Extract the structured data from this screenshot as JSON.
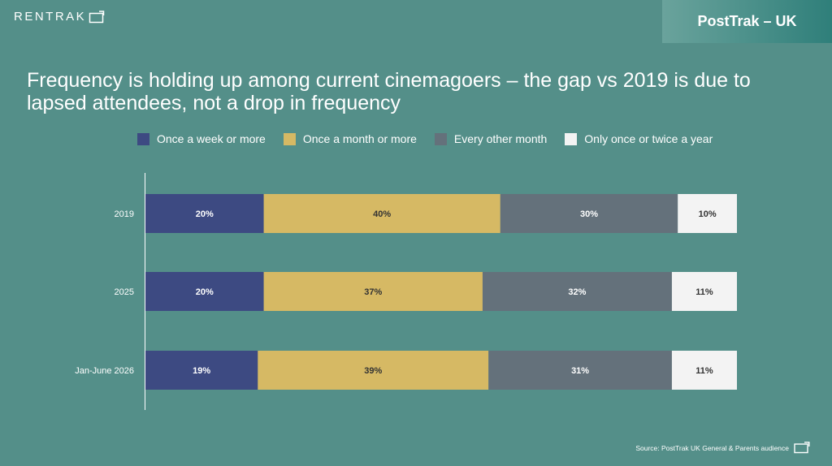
{
  "brand": {
    "logo_text": "RENTRAK"
  },
  "header": {
    "title": "PostTrak – UK"
  },
  "slide": {
    "title": "Frequency is holding up among current cinemagoers – the gap vs 2019 is due to lapsed attendees, not a drop in frequency",
    "source": "Source: PostTrak UK General & Parents audience"
  },
  "colors": {
    "background": "#548f89",
    "once_a_week": "#3d4a82",
    "once_a_month": "#d6b964",
    "every_other_month": "#64717b",
    "once_twice_year": "#f3f3f3"
  },
  "chart_data": {
    "type": "bar",
    "orientation": "horizontal",
    "stacked": true,
    "categories": [
      "2019",
      "2025",
      "Jan-June 2026"
    ],
    "series": [
      {
        "name": "Once a week or more",
        "values": [
          20,
          20,
          19
        ],
        "labels": [
          "20%",
          "20%",
          "19%"
        ],
        "color": "#3d4a82",
        "label_color": "#ffffff"
      },
      {
        "name": "Once a month or more",
        "values": [
          40,
          37,
          39
        ],
        "labels": [
          "40%",
          "37%",
          "39%"
        ],
        "color": "#d6b964",
        "label_color": "#333333"
      },
      {
        "name": "Every other month",
        "values": [
          30,
          32,
          31
        ],
        "labels": [
          "30%",
          "32%",
          "31%"
        ],
        "color": "#64717b",
        "label_color": "#ffffff"
      },
      {
        "name": "Only once or twice a year",
        "values": [
          10,
          11,
          11
        ],
        "labels": [
          "10%",
          "11%",
          "11%"
        ],
        "color": "#f3f3f3",
        "label_color": "#333333"
      }
    ],
    "xlim": [
      0,
      100
    ],
    "legend": "top",
    "grid": false
  }
}
